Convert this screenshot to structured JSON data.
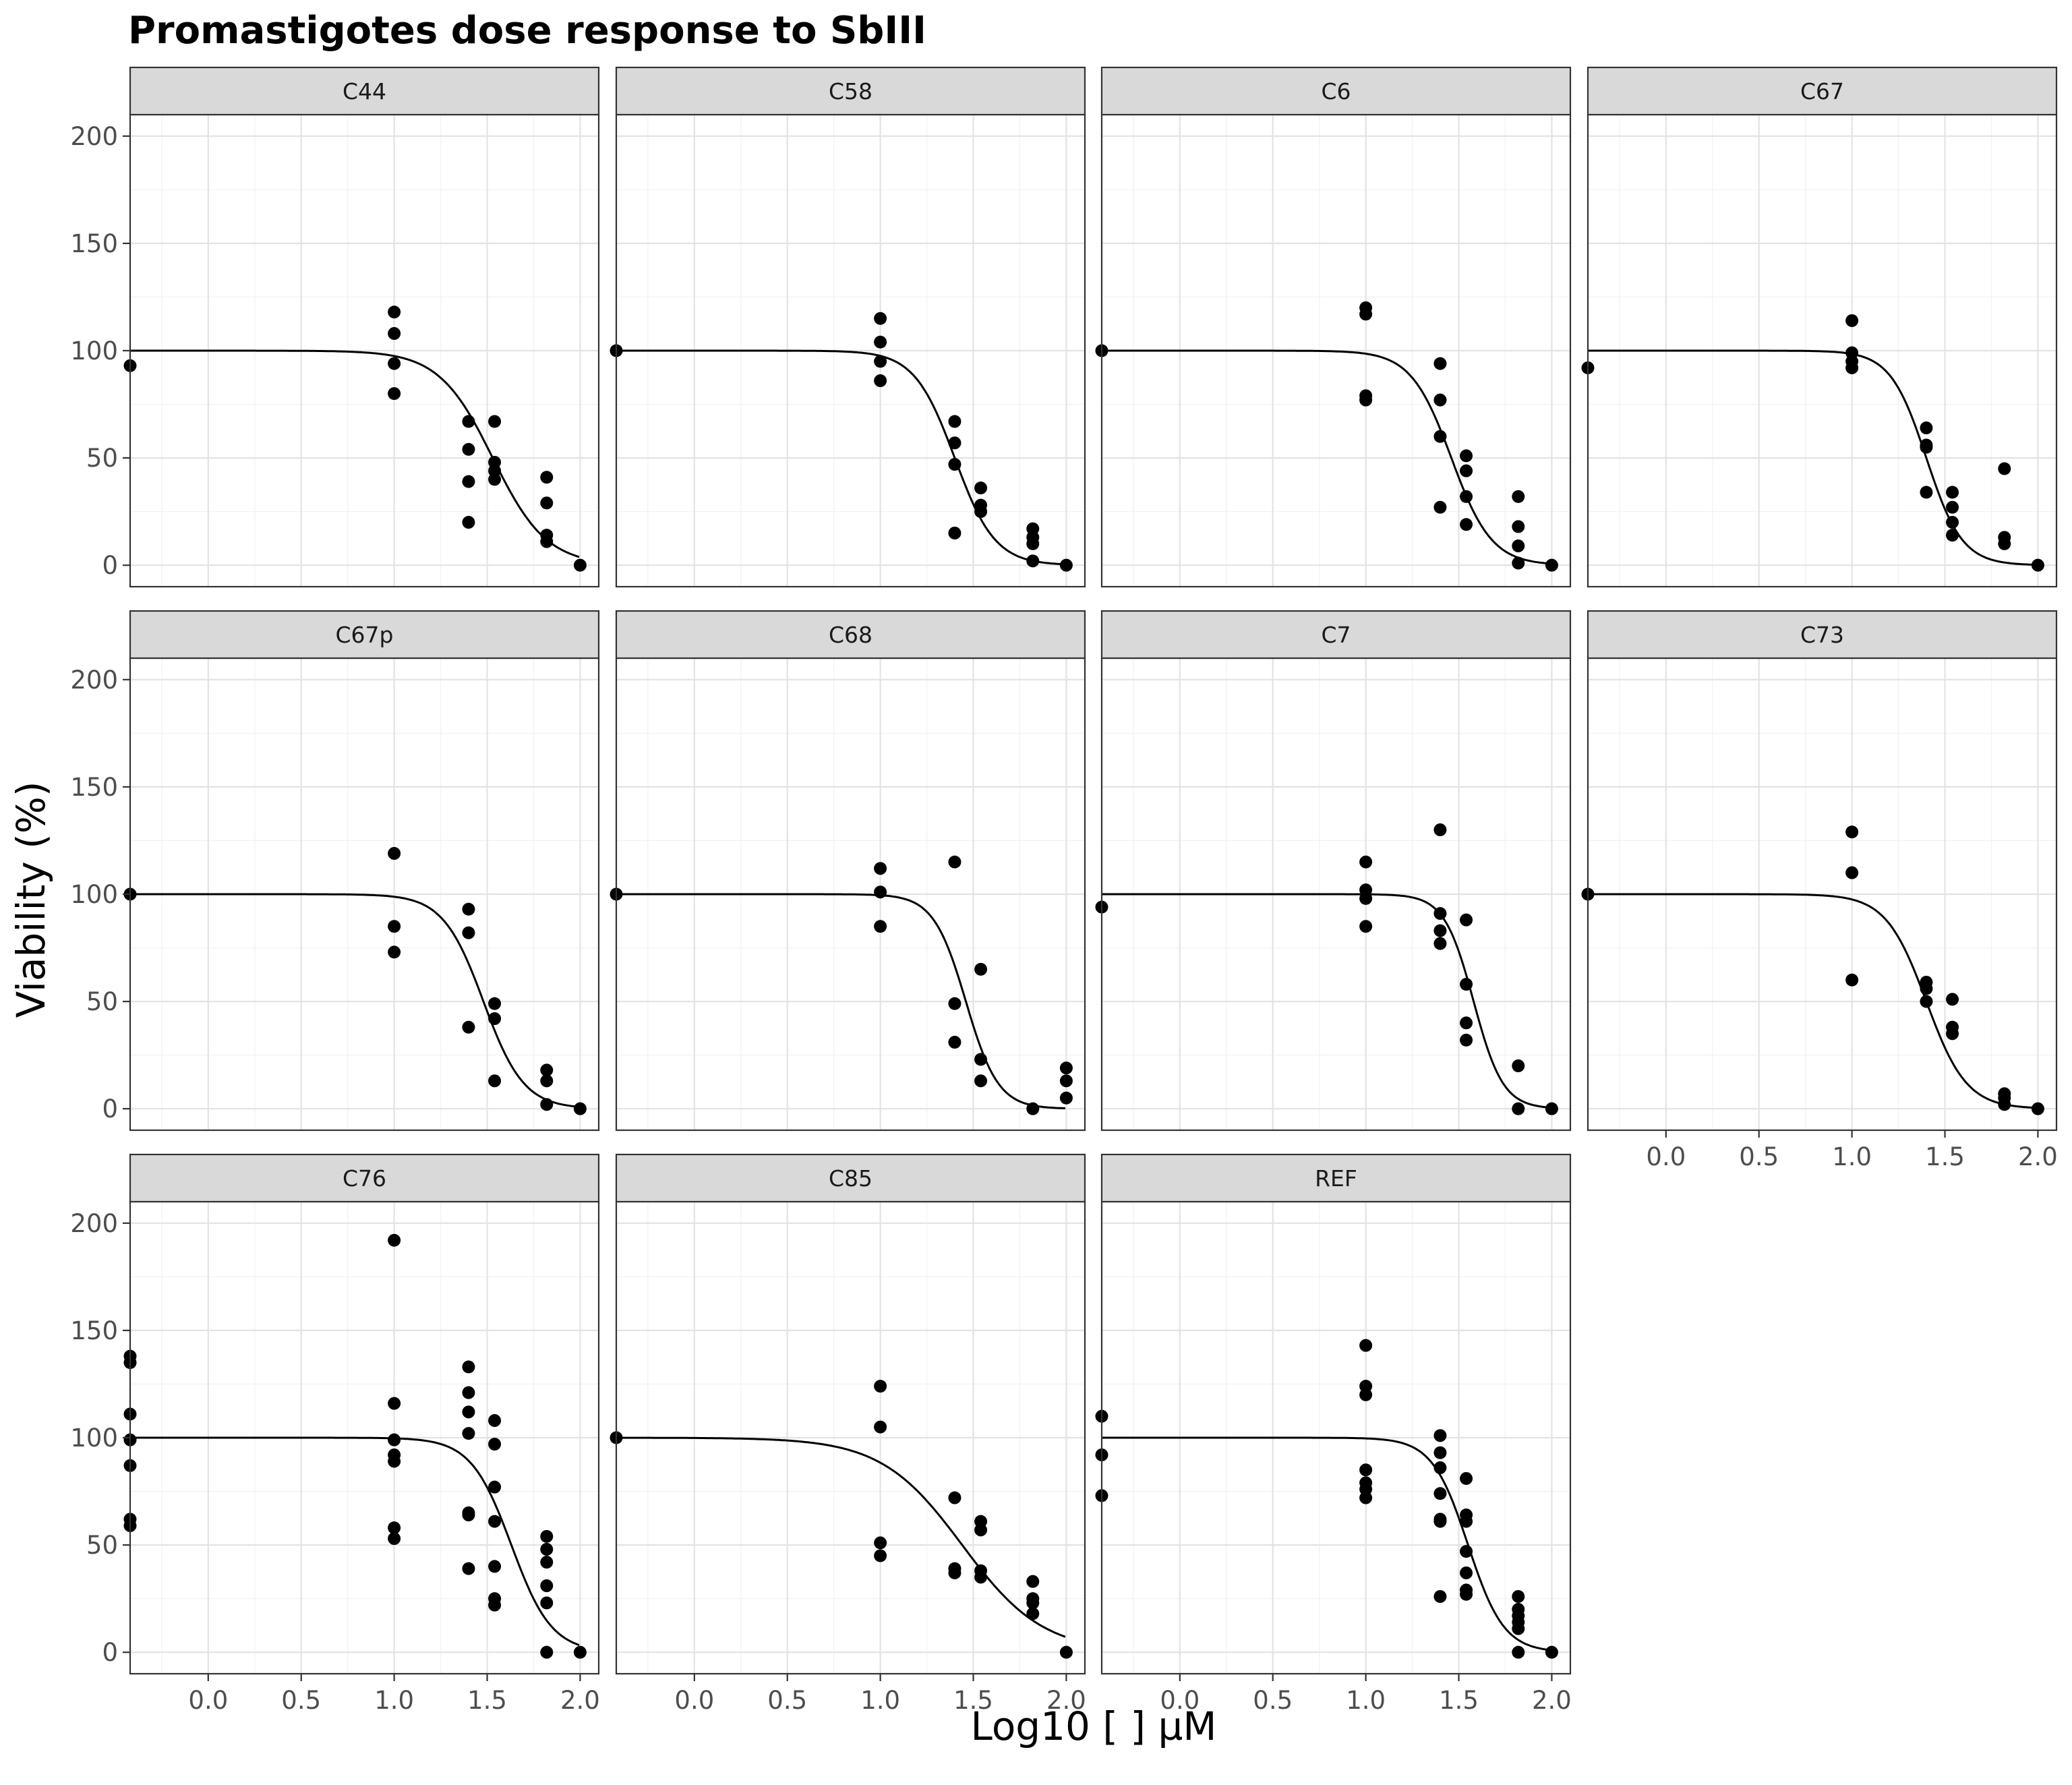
{
  "chart_data": {
    "type": "scatter",
    "title": "Promastigotes dose response to SbIII",
    "xlabel": "Log10 [ ] µM",
    "ylabel": "Viability (%)",
    "xlim": [
      -0.42,
      2.1
    ],
    "ylim": [
      -10,
      210
    ],
    "x_ticks": [
      0.0,
      0.5,
      1.0,
      1.5,
      2.0
    ],
    "x_tick_labels": [
      "0.0",
      "0.5",
      "1.0",
      "1.5",
      "2.0"
    ],
    "y_ticks": [
      0,
      50,
      100,
      150,
      200
    ],
    "y_tick_labels": [
      "0",
      "50",
      "100",
      "150",
      "200"
    ],
    "grid": true,
    "layout": "facet grid 3 rows x 4 columns",
    "series_style": "black points with fitted dose-response curve",
    "panels": [
      {
        "label": "C44",
        "points": [
          [
            -0.42,
            93
          ],
          [
            1.0,
            118
          ],
          [
            1.0,
            108
          ],
          [
            1.0,
            94
          ],
          [
            1.0,
            80
          ],
          [
            1.4,
            67
          ],
          [
            1.4,
            54
          ],
          [
            1.4,
            39
          ],
          [
            1.4,
            20
          ],
          [
            1.54,
            67
          ],
          [
            1.54,
            48
          ],
          [
            1.54,
            44
          ],
          [
            1.54,
            40
          ],
          [
            1.82,
            41
          ],
          [
            1.82,
            29
          ],
          [
            1.82,
            14
          ],
          [
            1.82,
            11
          ],
          [
            2.0,
            0
          ]
        ],
        "fit": {
          "top": 100,
          "log_ec50": 1.53,
          "hill": 3.0
        }
      },
      {
        "label": "C58",
        "points": [
          [
            -0.42,
            100
          ],
          [
            1.0,
            115
          ],
          [
            1.0,
            104
          ],
          [
            1.0,
            95
          ],
          [
            1.0,
            86
          ],
          [
            1.4,
            67
          ],
          [
            1.4,
            57
          ],
          [
            1.4,
            47
          ],
          [
            1.4,
            15
          ],
          [
            1.54,
            36
          ],
          [
            1.54,
            28
          ],
          [
            1.54,
            25
          ],
          [
            1.82,
            17
          ],
          [
            1.82,
            13
          ],
          [
            1.82,
            10
          ],
          [
            1.82,
            2
          ],
          [
            2.0,
            0
          ]
        ],
        "fit": {
          "top": 100,
          "log_ec50": 1.4,
          "hill": 4.0
        }
      },
      {
        "label": "C6",
        "points": [
          [
            -0.42,
            100
          ],
          [
            1.0,
            120
          ],
          [
            1.0,
            117
          ],
          [
            1.0,
            79
          ],
          [
            1.0,
            77
          ],
          [
            1.4,
            94
          ],
          [
            1.4,
            77
          ],
          [
            1.4,
            60
          ],
          [
            1.4,
            27
          ],
          [
            1.54,
            51
          ],
          [
            1.54,
            44
          ],
          [
            1.54,
            32
          ],
          [
            1.54,
            19
          ],
          [
            1.82,
            32
          ],
          [
            1.82,
            18
          ],
          [
            1.82,
            9
          ],
          [
            1.82,
            1
          ],
          [
            2.0,
            0
          ]
        ],
        "fit": {
          "top": 100,
          "log_ec50": 1.46,
          "hill": 4.0
        }
      },
      {
        "label": "C67",
        "points": [
          [
            -0.42,
            92
          ],
          [
            1.0,
            114
          ],
          [
            1.0,
            99
          ],
          [
            1.0,
            95
          ],
          [
            1.0,
            92
          ],
          [
            1.4,
            64
          ],
          [
            1.4,
            56
          ],
          [
            1.4,
            55
          ],
          [
            1.4,
            34
          ],
          [
            1.54,
            34
          ],
          [
            1.54,
            27
          ],
          [
            1.54,
            20
          ],
          [
            1.54,
            14
          ],
          [
            1.82,
            45
          ],
          [
            1.82,
            13
          ],
          [
            1.82,
            10
          ],
          [
            2.0,
            0
          ]
        ],
        "fit": {
          "top": 100,
          "log_ec50": 1.4,
          "hill": 4.5
        }
      },
      {
        "label": "C67p",
        "points": [
          [
            -0.42,
            100
          ],
          [
            1.0,
            119
          ],
          [
            1.0,
            85
          ],
          [
            1.0,
            73
          ],
          [
            1.4,
            93
          ],
          [
            1.4,
            82
          ],
          [
            1.4,
            38
          ],
          [
            1.54,
            49
          ],
          [
            1.54,
            42
          ],
          [
            1.54,
            13
          ],
          [
            1.82,
            18
          ],
          [
            1.82,
            13
          ],
          [
            1.82,
            2
          ],
          [
            2.0,
            0
          ]
        ],
        "fit": {
          "top": 100,
          "log_ec50": 1.48,
          "hill": 4.0
        }
      },
      {
        "label": "C68",
        "points": [
          [
            -0.42,
            100
          ],
          [
            1.0,
            112
          ],
          [
            1.0,
            101
          ],
          [
            1.0,
            85
          ],
          [
            1.4,
            115
          ],
          [
            1.4,
            49
          ],
          [
            1.4,
            31
          ],
          [
            1.54,
            65
          ],
          [
            1.54,
            23
          ],
          [
            1.54,
            13
          ],
          [
            1.82,
            0
          ],
          [
            2.0,
            19
          ],
          [
            2.0,
            13
          ],
          [
            2.0,
            5
          ]
        ],
        "fit": {
          "top": 100,
          "log_ec50": 1.46,
          "hill": 5.0
        }
      },
      {
        "label": "C7",
        "points": [
          [
            -0.42,
            94
          ],
          [
            1.0,
            115
          ],
          [
            1.0,
            102
          ],
          [
            1.0,
            98
          ],
          [
            1.0,
            85
          ],
          [
            1.4,
            130
          ],
          [
            1.4,
            91
          ],
          [
            1.4,
            83
          ],
          [
            1.4,
            77
          ],
          [
            1.54,
            88
          ],
          [
            1.54,
            58
          ],
          [
            1.54,
            40
          ],
          [
            1.54,
            32
          ],
          [
            1.82,
            20
          ],
          [
            1.82,
            0
          ],
          [
            2.0,
            0
          ]
        ],
        "fit": {
          "top": 100,
          "log_ec50": 1.58,
          "hill": 5.5
        }
      },
      {
        "label": "C73",
        "points": [
          [
            -0.42,
            100
          ],
          [
            1.0,
            129
          ],
          [
            1.0,
            110
          ],
          [
            1.0,
            60
          ],
          [
            1.4,
            59
          ],
          [
            1.4,
            56
          ],
          [
            1.4,
            50
          ],
          [
            1.54,
            51
          ],
          [
            1.54,
            38
          ],
          [
            1.54,
            35
          ],
          [
            1.82,
            7
          ],
          [
            1.82,
            5
          ],
          [
            1.82,
            2
          ],
          [
            2.0,
            0
          ]
        ],
        "fit": {
          "top": 100,
          "log_ec50": 1.4,
          "hill": 4.0
        }
      },
      {
        "label": "C76",
        "points": [
          [
            -0.42,
            138
          ],
          [
            -0.42,
            135
          ],
          [
            -0.42,
            111
          ],
          [
            -0.42,
            99
          ],
          [
            -0.42,
            87
          ],
          [
            -0.42,
            62
          ],
          [
            -0.42,
            59
          ],
          [
            1.0,
            192
          ],
          [
            1.0,
            116
          ],
          [
            1.0,
            99
          ],
          [
            1.0,
            92
          ],
          [
            1.0,
            89
          ],
          [
            1.0,
            58
          ],
          [
            1.0,
            53
          ],
          [
            1.4,
            133
          ],
          [
            1.4,
            121
          ],
          [
            1.4,
            112
          ],
          [
            1.4,
            102
          ],
          [
            1.4,
            65
          ],
          [
            1.4,
            64
          ],
          [
            1.4,
            39
          ],
          [
            1.54,
            108
          ],
          [
            1.54,
            97
          ],
          [
            1.54,
            77
          ],
          [
            1.54,
            61
          ],
          [
            1.54,
            40
          ],
          [
            1.54,
            25
          ],
          [
            1.54,
            22
          ],
          [
            1.82,
            54
          ],
          [
            1.82,
            48
          ],
          [
            1.82,
            42
          ],
          [
            1.82,
            31
          ],
          [
            1.82,
            23
          ],
          [
            1.82,
            0
          ],
          [
            2.0,
            0
          ]
        ],
        "fit": {
          "top": 100,
          "log_ec50": 1.63,
          "hill": 4.0
        }
      },
      {
        "label": "C85",
        "points": [
          [
            -0.42,
            100
          ],
          [
            1.0,
            124
          ],
          [
            1.0,
            105
          ],
          [
            1.0,
            51
          ],
          [
            1.0,
            45
          ],
          [
            1.4,
            72
          ],
          [
            1.4,
            39
          ],
          [
            1.4,
            37
          ],
          [
            1.54,
            61
          ],
          [
            1.54,
            57
          ],
          [
            1.54,
            38
          ],
          [
            1.54,
            35
          ],
          [
            1.82,
            33
          ],
          [
            1.82,
            25
          ],
          [
            1.82,
            23
          ],
          [
            1.82,
            18
          ],
          [
            2.0,
            0
          ]
        ],
        "fit": {
          "top": 100,
          "log_ec50": 1.44,
          "hill": 2.0
        }
      },
      {
        "label": "REF",
        "points": [
          [
            -0.42,
            110
          ],
          [
            -0.42,
            92
          ],
          [
            -0.42,
            73
          ],
          [
            1.0,
            143
          ],
          [
            1.0,
            124
          ],
          [
            1.0,
            120
          ],
          [
            1.0,
            85
          ],
          [
            1.0,
            79
          ],
          [
            1.0,
            76
          ],
          [
            1.0,
            72
          ],
          [
            1.4,
            101
          ],
          [
            1.4,
            93
          ],
          [
            1.4,
            86
          ],
          [
            1.4,
            74
          ],
          [
            1.4,
            62
          ],
          [
            1.4,
            61
          ],
          [
            1.4,
            26
          ],
          [
            1.54,
            81
          ],
          [
            1.54,
            64
          ],
          [
            1.54,
            61
          ],
          [
            1.54,
            47
          ],
          [
            1.54,
            37
          ],
          [
            1.54,
            29
          ],
          [
            1.54,
            27
          ],
          [
            1.82,
            26
          ],
          [
            1.82,
            20
          ],
          [
            1.82,
            17
          ],
          [
            1.82,
            14
          ],
          [
            1.82,
            11
          ],
          [
            1.82,
            0
          ],
          [
            2.0,
            0
          ]
        ],
        "fit": {
          "top": 100,
          "log_ec50": 1.55,
          "hill": 4.5
        }
      }
    ]
  }
}
